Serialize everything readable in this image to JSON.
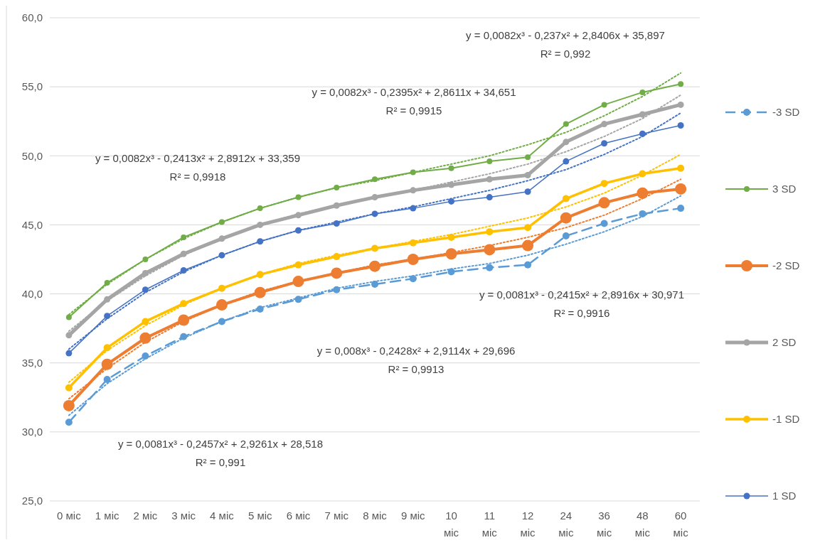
{
  "chart_data": {
    "type": "line",
    "categories": [
      "0 міс",
      "1 міс",
      "2 міс",
      "3 міс",
      "4 міс",
      "5 міс",
      "6 міс",
      "7 міс",
      "8 міс",
      "9 міс",
      "10 міс",
      "11 міс",
      "12 міс",
      "24 міс",
      "36 міс",
      "48 міс",
      "60 міс"
    ],
    "ylim": [
      25,
      60
    ],
    "yticks": [
      {
        "value": 25,
        "label": "25,0"
      },
      {
        "value": 30,
        "label": "30,0"
      },
      {
        "value": 35,
        "label": "35,0"
      },
      {
        "value": 40,
        "label": "40,0"
      },
      {
        "value": 45,
        "label": "45,0"
      },
      {
        "value": 50,
        "label": "50,0"
      },
      {
        "value": 55,
        "label": "55,0"
      },
      {
        "value": 60,
        "label": "60,0"
      }
    ],
    "grid": "y",
    "legend": "right",
    "marker": "circle",
    "series": [
      {
        "name": "-3 SD",
        "color": "#5b9bd5",
        "line_style": "dashed",
        "values": [
          30.7,
          33.8,
          35.5,
          36.9,
          38.0,
          38.9,
          39.6,
          40.3,
          40.7,
          41.1,
          41.6,
          41.9,
          42.1,
          44.2,
          45.1,
          45.8,
          46.2
        ]
      },
      {
        "name": "3 SD",
        "color": "#70ad47",
        "values": [
          38.3,
          40.8,
          42.5,
          44.1,
          45.2,
          46.2,
          47.0,
          47.7,
          48.3,
          48.8,
          49.1,
          49.6,
          49.9,
          52.3,
          53.7,
          54.6,
          55.2
        ]
      },
      {
        "name": "-2 SD",
        "color": "#ed7d31",
        "values": [
          31.9,
          34.9,
          36.8,
          38.1,
          39.2,
          40.1,
          40.9,
          41.5,
          42.0,
          42.5,
          42.9,
          43.2,
          43.5,
          45.5,
          46.6,
          47.3,
          47.6
        ]
      },
      {
        "name": "2 SD",
        "color": "#a5a5a5",
        "values": [
          37.0,
          39.6,
          41.5,
          42.9,
          44.0,
          45.0,
          45.7,
          46.4,
          47.0,
          47.5,
          47.9,
          48.3,
          48.6,
          51.0,
          52.3,
          53.0,
          53.7
        ]
      },
      {
        "name": "-1 SD",
        "color": "#ffc000",
        "values": [
          33.2,
          36.1,
          38.0,
          39.3,
          40.4,
          41.4,
          42.1,
          42.7,
          43.3,
          43.7,
          44.1,
          44.5,
          44.8,
          46.9,
          48.0,
          48.7,
          49.1
        ]
      },
      {
        "name": "1 SD",
        "color": "#4472c4",
        "values": [
          35.7,
          38.4,
          40.3,
          41.7,
          42.8,
          43.8,
          44.6,
          45.1,
          45.8,
          46.2,
          46.7,
          47.0,
          47.4,
          49.6,
          50.9,
          51.6,
          52.2
        ]
      },
      {
        "color": "#5b9bd5",
        "line_style": "dotted",
        "marker": "none",
        "values": [
          31.2,
          33.5,
          35.3,
          36.8,
          38.0,
          39.0,
          39.7,
          40.4,
          40.9,
          41.3,
          41.8,
          42.2,
          42.8,
          43.6,
          44.5,
          45.6,
          47.1
        ]
      },
      {
        "color": "#70ad47",
        "line_style": "dotted",
        "marker": "none",
        "values": [
          38.5,
          40.7,
          42.5,
          44.0,
          45.2,
          46.2,
          47.0,
          47.7,
          48.2,
          48.8,
          49.4,
          50.0,
          50.8,
          51.7,
          52.9,
          54.3,
          56.0
        ]
      },
      {
        "color": "#ed7d31",
        "line_style": "dotted",
        "marker": "none",
        "values": [
          32.4,
          34.6,
          36.5,
          38.0,
          39.2,
          40.2,
          40.9,
          41.5,
          42.1,
          42.5,
          43.0,
          43.5,
          44.1,
          44.8,
          45.7,
          46.9,
          48.3
        ]
      },
      {
        "color": "#a5a5a5",
        "line_style": "dotted",
        "marker": "none",
        "values": [
          37.3,
          39.5,
          41.3,
          42.8,
          44.0,
          45.0,
          45.8,
          46.4,
          47.0,
          47.5,
          48.1,
          48.7,
          49.4,
          50.3,
          51.4,
          52.7,
          54.4
        ]
      },
      {
        "color": "#ffc000",
        "line_style": "dotted",
        "marker": "none",
        "values": [
          33.6,
          35.9,
          37.7,
          39.2,
          40.4,
          41.4,
          42.2,
          42.8,
          43.3,
          43.8,
          44.3,
          44.9,
          45.5,
          46.3,
          47.3,
          48.6,
          50.1
        ]
      },
      {
        "color": "#4472c4",
        "line_style": "dotted",
        "marker": "none",
        "values": [
          36.0,
          38.2,
          40.1,
          41.6,
          42.8,
          43.8,
          44.6,
          45.2,
          45.8,
          46.3,
          46.9,
          47.5,
          48.2,
          49.0,
          50.1,
          51.4,
          53.1
        ]
      }
    ],
    "annotations": [
      "y = 0,0082x³ - 0,237x² + 2,8406x + 35,897\nR² = 0,992",
      "y = 0,0082x³ - 0,2395x² + 2,8611x + 34,651\nR² = 0,9915",
      "y = 0,0082x³ - 0,2413x² + 2,8912x + 33,359\nR² = 0,9918",
      "y = 0,0081x³ - 0,2415x² + 2,8916x + 30,971\nR² = 0,9916",
      "y = 0,008x³ - 0,2428x² + 2,9114x + 29,696\nR² = 0,9913",
      "y = 0,0081x³ - 0,2457x² + 2,9261x + 28,518\nR² = 0,991"
    ]
  }
}
